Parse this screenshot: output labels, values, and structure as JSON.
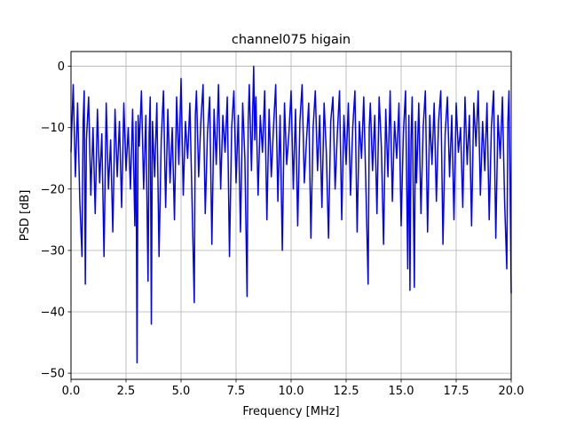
{
  "chart_data": {
    "type": "line",
    "title": "channel075 higain",
    "xlabel": "Frequency [MHz]",
    "ylabel": "PSD [dB]",
    "xlim": [
      0,
      20
    ],
    "ylim": [
      -51,
      2.4
    ],
    "x_ticks": [
      0.0,
      2.5,
      5.0,
      7.5,
      10.0,
      12.5,
      15.0,
      17.5,
      20.0
    ],
    "x_tick_labels": [
      "0.0",
      "2.5",
      "5.0",
      "7.5",
      "10.0",
      "12.5",
      "15.0",
      "17.5",
      "20.0"
    ],
    "y_ticks": [
      0,
      -10,
      -20,
      -30,
      -40,
      -50
    ],
    "y_tick_labels": [
      "0",
      "−10",
      "−20",
      "−30",
      "−40",
      "−50"
    ],
    "grid": true,
    "series": [
      {
        "color": "#0000ff",
        "points": [
          [
            0.0,
            -14
          ],
          [
            0.1,
            -3
          ],
          [
            0.2,
            -18
          ],
          [
            0.3,
            -6
          ],
          [
            0.4,
            -22
          ],
          [
            0.5,
            -31
          ],
          [
            0.55,
            -9
          ],
          [
            0.6,
            -4
          ],
          [
            0.65,
            -35.5
          ],
          [
            0.7,
            -12
          ],
          [
            0.8,
            -5
          ],
          [
            0.9,
            -21
          ],
          [
            1.0,
            -10
          ],
          [
            1.1,
            -24
          ],
          [
            1.2,
            -7
          ],
          [
            1.3,
            -19
          ],
          [
            1.4,
            -11
          ],
          [
            1.5,
            -31
          ],
          [
            1.6,
            -6
          ],
          [
            1.7,
            -20
          ],
          [
            1.8,
            -12
          ],
          [
            1.9,
            -27
          ],
          [
            2.0,
            -7
          ],
          [
            2.1,
            -18
          ],
          [
            2.2,
            -9
          ],
          [
            2.3,
            -23
          ],
          [
            2.4,
            -6
          ],
          [
            2.5,
            -17
          ],
          [
            2.6,
            -10
          ],
          [
            2.7,
            -20
          ],
          [
            2.8,
            -7
          ],
          [
            2.9,
            -26
          ],
          [
            2.95,
            -9
          ],
          [
            3.0,
            -48.3
          ],
          [
            3.05,
            -8
          ],
          [
            3.1,
            -13
          ],
          [
            3.2,
            -4
          ],
          [
            3.3,
            -20
          ],
          [
            3.4,
            -8
          ],
          [
            3.5,
            -35
          ],
          [
            3.55,
            -11
          ],
          [
            3.6,
            -5
          ],
          [
            3.65,
            -42
          ],
          [
            3.7,
            -9
          ],
          [
            3.8,
            -18
          ],
          [
            3.9,
            -6
          ],
          [
            4.0,
            -31
          ],
          [
            4.1,
            -12
          ],
          [
            4.2,
            -4
          ],
          [
            4.3,
            -23
          ],
          [
            4.4,
            -7
          ],
          [
            4.5,
            -19
          ],
          [
            4.6,
            -10
          ],
          [
            4.7,
            -25
          ],
          [
            4.8,
            -5
          ],
          [
            4.9,
            -16
          ],
          [
            5.0,
            -2
          ],
          [
            5.1,
            -21
          ],
          [
            5.2,
            -9
          ],
          [
            5.3,
            -15
          ],
          [
            5.4,
            -6
          ],
          [
            5.5,
            -22
          ],
          [
            5.6,
            -38.5
          ],
          [
            5.65,
            -8
          ],
          [
            5.7,
            -4
          ],
          [
            5.8,
            -18
          ],
          [
            5.9,
            -9
          ],
          [
            6.0,
            -3
          ],
          [
            6.1,
            -24
          ],
          [
            6.2,
            -11
          ],
          [
            6.3,
            -5
          ],
          [
            6.4,
            -29
          ],
          [
            6.5,
            -7
          ],
          [
            6.6,
            -16
          ],
          [
            6.7,
            -3
          ],
          [
            6.8,
            -20
          ],
          [
            6.9,
            -8
          ],
          [
            7.0,
            -14
          ],
          [
            7.1,
            -5
          ],
          [
            7.2,
            -31
          ],
          [
            7.3,
            -10
          ],
          [
            7.4,
            -4
          ],
          [
            7.5,
            -19
          ],
          [
            7.6,
            -8
          ],
          [
            7.7,
            -27
          ],
          [
            7.8,
            -6
          ],
          [
            7.9,
            -15
          ],
          [
            8.0,
            -37.5
          ],
          [
            8.05,
            -9
          ],
          [
            8.1,
            -3
          ],
          [
            8.2,
            -17
          ],
          [
            8.3,
            0
          ],
          [
            8.35,
            -12
          ],
          [
            8.4,
            -5
          ],
          [
            8.5,
            -21
          ],
          [
            8.6,
            -8
          ],
          [
            8.7,
            -14
          ],
          [
            8.8,
            -4
          ],
          [
            8.9,
            -25
          ],
          [
            9.0,
            -7
          ],
          [
            9.1,
            -18
          ],
          [
            9.2,
            -10
          ],
          [
            9.3,
            -3
          ],
          [
            9.4,
            -22
          ],
          [
            9.5,
            -8
          ],
          [
            9.6,
            -30
          ],
          [
            9.7,
            -6
          ],
          [
            9.8,
            -16
          ],
          [
            9.9,
            -11
          ],
          [
            10.0,
            -4
          ],
          [
            10.1,
            -20
          ],
          [
            10.2,
            -7
          ],
          [
            10.3,
            -26
          ],
          [
            10.4,
            -9
          ],
          [
            10.5,
            -3
          ],
          [
            10.6,
            -19
          ],
          [
            10.7,
            -12
          ],
          [
            10.8,
            -6
          ],
          [
            10.9,
            -28
          ],
          [
            11.0,
            -10
          ],
          [
            11.1,
            -4
          ],
          [
            11.2,
            -17
          ],
          [
            11.3,
            -8
          ],
          [
            11.4,
            -23
          ],
          [
            11.5,
            -6
          ],
          [
            11.6,
            -14
          ],
          [
            11.7,
            -28
          ],
          [
            11.8,
            -9
          ],
          [
            11.9,
            -5
          ],
          [
            12.0,
            -20
          ],
          [
            12.1,
            -11
          ],
          [
            12.2,
            -4
          ],
          [
            12.3,
            -25
          ],
          [
            12.4,
            -8
          ],
          [
            12.5,
            -16
          ],
          [
            12.6,
            -6
          ],
          [
            12.7,
            -21
          ],
          [
            12.8,
            -10
          ],
          [
            12.9,
            -4
          ],
          [
            13.0,
            -27
          ],
          [
            13.1,
            -9
          ],
          [
            13.2,
            -15
          ],
          [
            13.3,
            -5
          ],
          [
            13.4,
            -20
          ],
          [
            13.5,
            -35.5
          ],
          [
            13.55,
            -10
          ],
          [
            13.6,
            -6
          ],
          [
            13.7,
            -17
          ],
          [
            13.8,
            -8
          ],
          [
            13.9,
            -24
          ],
          [
            14.0,
            -5
          ],
          [
            14.1,
            -13
          ],
          [
            14.2,
            -29
          ],
          [
            14.3,
            -7
          ],
          [
            14.4,
            -18
          ],
          [
            14.5,
            -4
          ],
          [
            14.6,
            -22
          ],
          [
            14.7,
            -9
          ],
          [
            14.8,
            -15
          ],
          [
            14.9,
            -6
          ],
          [
            15.0,
            -26
          ],
          [
            15.1,
            -11
          ],
          [
            15.2,
            -4
          ],
          [
            15.3,
            -33
          ],
          [
            15.35,
            -8
          ],
          [
            15.4,
            -36.5
          ],
          [
            15.45,
            -12
          ],
          [
            15.5,
            -5
          ],
          [
            15.6,
            -36
          ],
          [
            15.65,
            -9
          ],
          [
            15.7,
            -19
          ],
          [
            15.8,
            -6
          ],
          [
            15.9,
            -24
          ],
          [
            16.0,
            -10
          ],
          [
            16.1,
            -4
          ],
          [
            16.2,
            -27
          ],
          [
            16.3,
            -8
          ],
          [
            16.4,
            -16
          ],
          [
            16.5,
            -6
          ],
          [
            16.6,
            -22
          ],
          [
            16.7,
            -9
          ],
          [
            16.8,
            -4
          ],
          [
            16.9,
            -29
          ],
          [
            17.0,
            -11
          ],
          [
            17.1,
            -5
          ],
          [
            17.2,
            -18
          ],
          [
            17.3,
            -8
          ],
          [
            17.4,
            -25
          ],
          [
            17.5,
            -6
          ],
          [
            17.6,
            -14
          ],
          [
            17.7,
            -10
          ],
          [
            17.8,
            -23
          ],
          [
            17.9,
            -5
          ],
          [
            18.0,
            -16
          ],
          [
            18.1,
            -8
          ],
          [
            18.2,
            -26
          ],
          [
            18.3,
            -6
          ],
          [
            18.4,
            -13
          ],
          [
            18.5,
            -4
          ],
          [
            18.6,
            -21
          ],
          [
            18.7,
            -9
          ],
          [
            18.8,
            -17
          ],
          [
            18.9,
            -6
          ],
          [
            19.0,
            -25
          ],
          [
            19.1,
            -10
          ],
          [
            19.2,
            -4
          ],
          [
            19.3,
            -28
          ],
          [
            19.4,
            -8
          ],
          [
            19.5,
            -15
          ],
          [
            19.6,
            -5
          ],
          [
            19.7,
            -22
          ],
          [
            19.8,
            -33
          ],
          [
            19.85,
            -9
          ],
          [
            19.9,
            -4
          ],
          [
            19.95,
            -19
          ],
          [
            20.0,
            -37
          ]
        ]
      }
    ]
  }
}
